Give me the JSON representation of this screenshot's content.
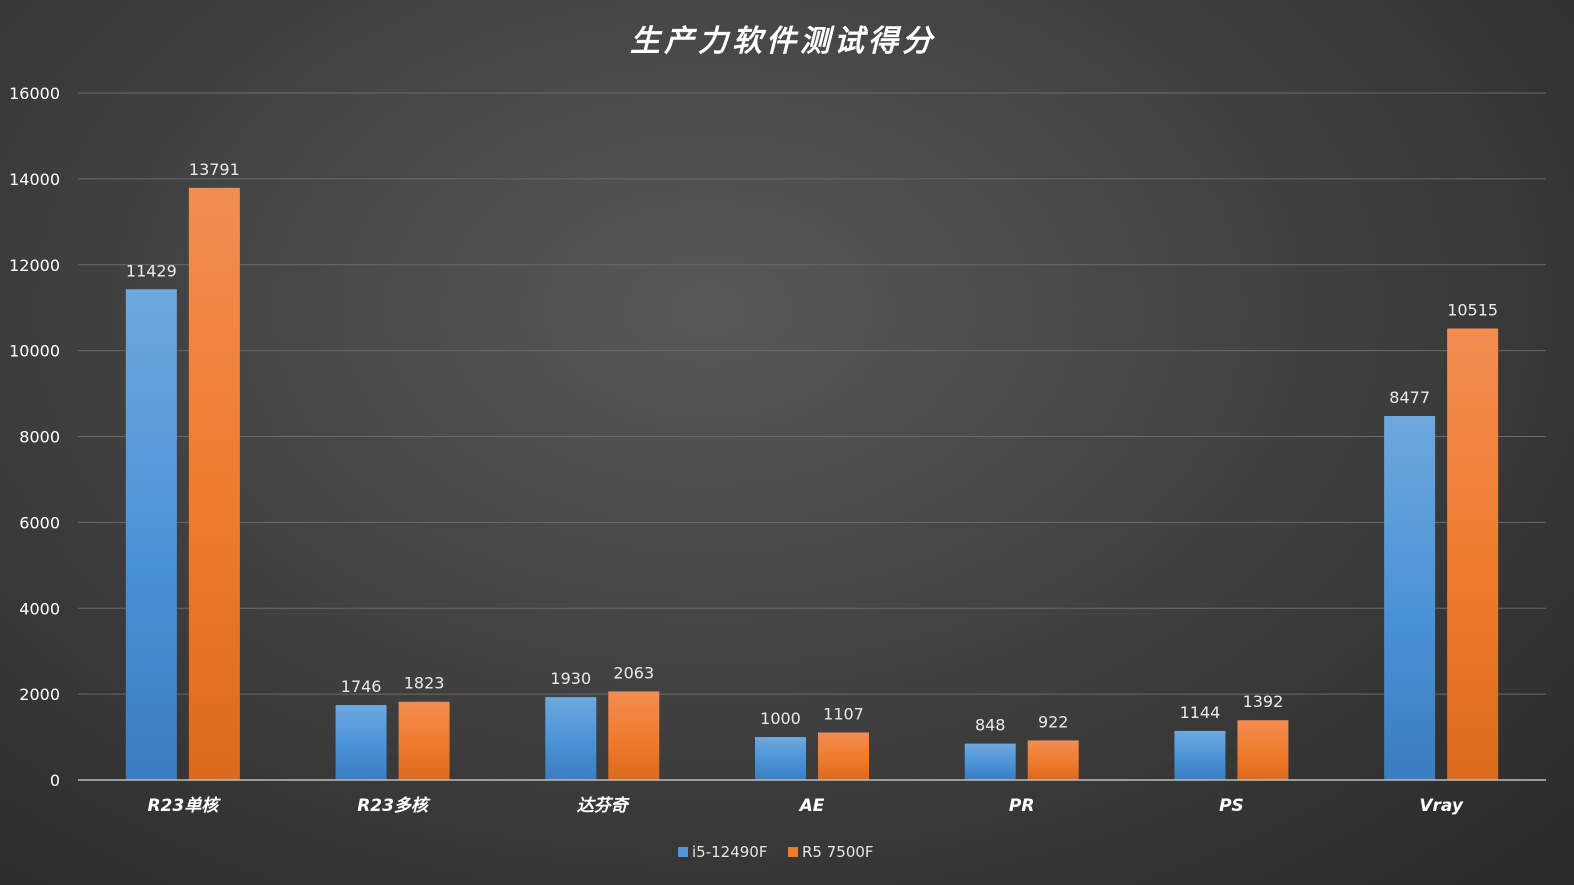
{
  "chart_data": {
    "type": "bar",
    "title": "生产力软件测试得分",
    "categories": [
      "R23单核",
      "R23多核",
      "达芬奇",
      "AE",
      "PR",
      "PS",
      "Vray"
    ],
    "series": [
      {
        "name": "i5-12490F",
        "color": "#4f96d8",
        "values": [
          11429,
          1746,
          1930,
          1000,
          848,
          1144,
          8477
        ]
      },
      {
        "name": "R5 7500F",
        "color": "#ef7b2c",
        "values": [
          13791,
          1823,
          2063,
          1107,
          922,
          1392,
          10515
        ]
      }
    ],
    "ylim": [
      0,
      16000
    ],
    "yticks": [
      0,
      2000,
      4000,
      6000,
      8000,
      10000,
      12000,
      14000,
      16000
    ],
    "xlabel": "",
    "ylabel": "",
    "grid": true,
    "legend": "bottom-center"
  }
}
